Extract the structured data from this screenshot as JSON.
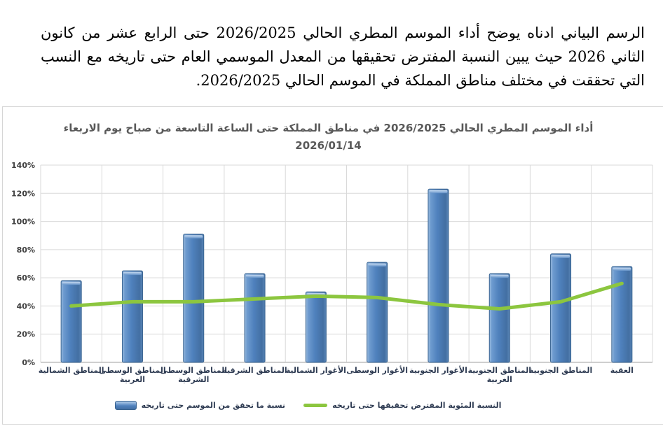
{
  "intro": {
    "text": "الرسم البياني ادناه يوضح أداء الموسم المطري الحالي 2026/2025 حتى الرابع عشر من كانون الثاني 2026 حيث يبين النسبة المفترض تحقيقها من المعدل الموسمي العام حتى تاريخه مع النسب التي تحققت في مختلف مناطق المملكة في الموسم الحالي 2026/2025."
  },
  "chart": {
    "title_line1": "أداء الموسم المطري الحالي 2026/2025 في مناطق المملكة حتى الساعة التاسعة من صباح يوم الاربعاء",
    "title_line2": "2026/01/14"
  },
  "chart_data": {
    "type": "bar",
    "title": "أداء الموسم المطري الحالي 2026/2025 في مناطق المملكة حتى الساعة التاسعة من صباح يوم الاربعاء 2026/01/14",
    "categories": [
      "المناطق الشمالية",
      "المناطق الوسطى الغربية",
      "المناطق الوسطى الشرقية",
      "المناطق الشرقية",
      "الأغوار الشمالية",
      "الأغوار الوسطى",
      "الأغوار الجنوبية",
      "المناطق الجنوبية الغربية",
      "المناطق الجنوبية",
      "العقبة"
    ],
    "categories_wrapped": [
      [
        "المناطق الشمالية"
      ],
      [
        "المناطق الوسطى",
        "الغربية"
      ],
      [
        "المناطق الوسطى",
        "الشرقية"
      ],
      [
        "المناطق الشرقية"
      ],
      [
        "الأغوار الشمالية"
      ],
      [
        "الأغوار الوسطى"
      ],
      [
        "الأغوار الجنوبية"
      ],
      [
        "المناطق الجنوبية",
        "الغربية"
      ],
      [
        "المناطق الجنوبية"
      ],
      [
        "العقبة"
      ]
    ],
    "series": [
      {
        "name": "نسبة ما تحقق من الموسم حتى تاريخه",
        "type": "bar",
        "color": "#4F81BD",
        "values": [
          58,
          65,
          91,
          63,
          50,
          71,
          123,
          63,
          77,
          68
        ]
      },
      {
        "name": "النسبة المئوية المفترض تحقيقها حتى تاريخه",
        "type": "line",
        "color": "#8CC63F",
        "values": [
          40,
          43,
          43,
          45,
          47,
          46,
          41,
          38,
          43,
          56
        ]
      }
    ],
    "xlabel": "",
    "ylabel": "",
    "ylim": [
      0,
      140
    ],
    "ytick_labels": [
      "0%",
      "20%",
      "40%",
      "60%",
      "80%",
      "100%",
      "120%",
      "140%"
    ],
    "grid": true,
    "legend_position": "bottom",
    "colors": {
      "bar_fill": "#4F81BD",
      "bar_border": "#36618F",
      "line": "#8CC63F",
      "grid": "#D9D9D9",
      "axis": "#BFBFBF",
      "title_text": "#595959",
      "axis_text": "#404040",
      "category_text": "#2E3B52"
    }
  }
}
